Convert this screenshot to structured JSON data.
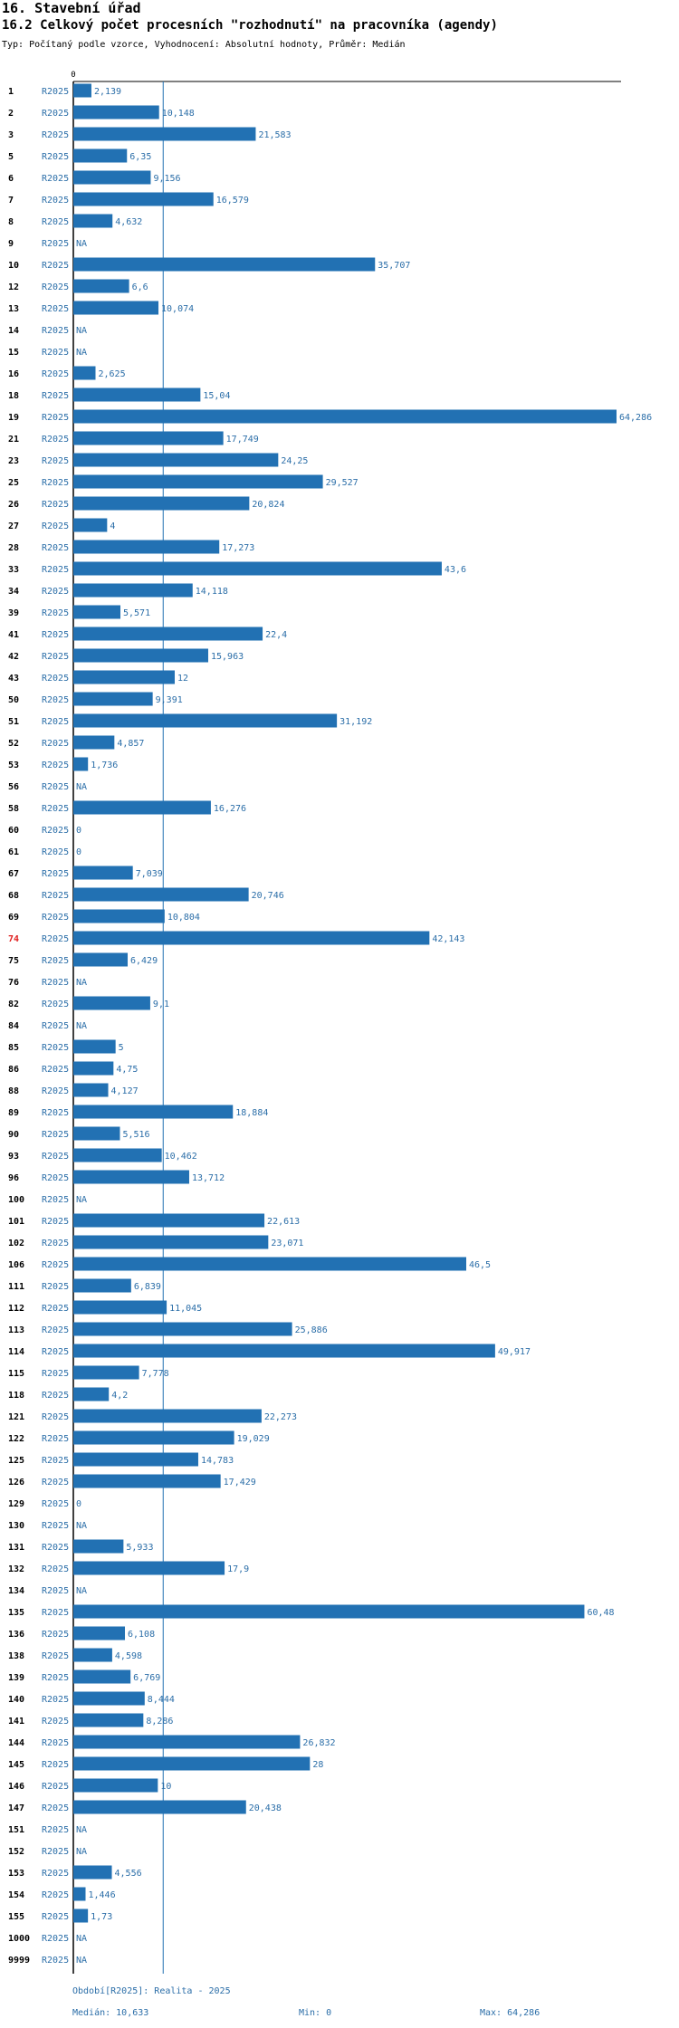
{
  "header": {
    "section_title": "16. Stavební úřad",
    "chart_title": "16.2 Celkový počet procesních \"rozhodnutí\" na pracovníka (agendy)",
    "subtitle": "Typ: Počítaný podle vzorce, Vyhodnocení: Absolutní hodnoty, Průměr: Medián"
  },
  "colors": {
    "bar": "#2271b3",
    "label": "#2b6ea8",
    "highlight": "#e02020",
    "axis": "#000000"
  },
  "chart_data": {
    "type": "bar",
    "orientation": "horizontal",
    "axis_zero_label": "0",
    "xlim": [
      0,
      64.286
    ],
    "series_name": "R2025",
    "median": 10.633,
    "highlight_category": "74",
    "categories": [
      "1",
      "2",
      "3",
      "5",
      "6",
      "7",
      "8",
      "9",
      "10",
      "12",
      "13",
      "14",
      "15",
      "16",
      "18",
      "19",
      "21",
      "23",
      "25",
      "26",
      "27",
      "28",
      "33",
      "34",
      "39",
      "41",
      "42",
      "43",
      "50",
      "51",
      "52",
      "53",
      "56",
      "58",
      "60",
      "61",
      "67",
      "68",
      "69",
      "74",
      "75",
      "76",
      "82",
      "84",
      "85",
      "86",
      "88",
      "89",
      "90",
      "93",
      "96",
      "100",
      "101",
      "102",
      "106",
      "111",
      "112",
      "113",
      "114",
      "115",
      "118",
      "121",
      "122",
      "125",
      "126",
      "129",
      "130",
      "131",
      "132",
      "134",
      "135",
      "136",
      "138",
      "139",
      "140",
      "141",
      "144",
      "145",
      "146",
      "147",
      "151",
      "152",
      "153",
      "154",
      "155",
      "1000",
      "9999"
    ],
    "values": [
      2.139,
      10.148,
      21.583,
      6.35,
      9.156,
      16.579,
      4.632,
      null,
      35.707,
      6.6,
      10.074,
      null,
      null,
      2.625,
      15.04,
      64.286,
      17.749,
      24.25,
      29.527,
      20.824,
      4,
      17.273,
      43.6,
      14.118,
      5.571,
      22.4,
      15.963,
      12,
      9.391,
      31.192,
      4.857,
      1.736,
      null,
      16.276,
      0,
      0,
      7.039,
      20.746,
      10.804,
      42.143,
      6.429,
      null,
      9.1,
      null,
      5,
      4.75,
      4.127,
      18.884,
      5.516,
      10.462,
      13.712,
      null,
      22.613,
      23.071,
      46.5,
      6.839,
      11.045,
      25.886,
      49.917,
      7.778,
      4.2,
      22.273,
      19.029,
      14.783,
      17.429,
      0,
      null,
      5.933,
      17.9,
      null,
      60.48,
      6.108,
      4.598,
      6.769,
      8.444,
      8.286,
      26.832,
      28,
      10,
      20.438,
      null,
      null,
      4.556,
      1.446,
      1.73,
      null,
      null
    ],
    "value_labels": [
      "2,139",
      "10,148",
      "21,583",
      "6,35",
      "9,156",
      "16,579",
      "4,632",
      "NA",
      "35,707",
      "6,6",
      "10,074",
      "NA",
      "NA",
      "2,625",
      "15,04",
      "64,286",
      "17,749",
      "24,25",
      "29,527",
      "20,824",
      "4",
      "17,273",
      "43,6",
      "14,118",
      "5,571",
      "22,4",
      "15,963",
      "12",
      "9,391",
      "31,192",
      "4,857",
      "1,736",
      "NA",
      "16,276",
      "0",
      "0",
      "7,039",
      "20,746",
      "10,804",
      "42,143",
      "6,429",
      "NA",
      "9,1",
      "NA",
      "5",
      "4,75",
      "4,127",
      "18,884",
      "5,516",
      "10,462",
      "13,712",
      "NA",
      "22,613",
      "23,071",
      "46,5",
      "6,839",
      "11,045",
      "25,886",
      "49,917",
      "7,778",
      "4,2",
      "22,273",
      "19,029",
      "14,783",
      "17,429",
      "0",
      "NA",
      "5,933",
      "17,9",
      "NA",
      "60,48",
      "6,108",
      "4,598",
      "6,769",
      "8,444",
      "8,286",
      "26,832",
      "28",
      "10",
      "20,438",
      "NA",
      "NA",
      "4,556",
      "1,446",
      "1,73",
      "NA",
      "NA"
    ]
  },
  "footer": {
    "period": "Období[R2025]: Realita - 2025",
    "median": "Medián: 10,633",
    "min": "Min: 0",
    "max": "Max: 64,286"
  }
}
